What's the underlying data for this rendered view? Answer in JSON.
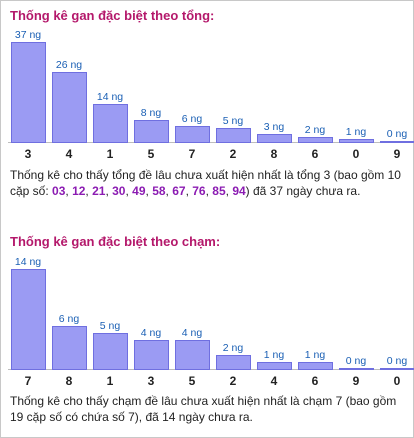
{
  "colors": {
    "title": "#b4186b",
    "bar_fill": "#9b9bf3",
    "bar_stroke": "#6f6fe0",
    "value_label": "#1a5fb4",
    "highlight": "#8b1bb2"
  },
  "section1": {
    "title": "Thống kê gan đặc biệt theo tổng:",
    "desc_pre": "Thống kê cho thấy tổng đề lâu chưa xuất hiện nhất là tổng 3 (bao gồm 10 cặp số: ",
    "numbers": [
      "03",
      "12",
      "21",
      "30",
      "49",
      "58",
      "67",
      "76",
      "85",
      "94"
    ],
    "desc_post": ") đã 37 ngày chưa ra."
  },
  "section2": {
    "title": "Thống kê gan đặc biệt theo chạm:",
    "desc": "Thống kê cho thấy chạm đề lâu chưa xuất hiện nhất là chạm 7 (bao gồm 19 cặp số có chứa số 7), đã 14 ngày chưa ra."
  },
  "chart_data": [
    {
      "type": "bar",
      "title": "Thống kê gan đặc biệt theo tổng:",
      "categories": [
        "3",
        "4",
        "1",
        "5",
        "7",
        "2",
        "8",
        "6",
        "0",
        "9"
      ],
      "values": [
        37,
        26,
        14,
        8,
        6,
        5,
        3,
        2,
        1,
        0
      ],
      "value_labels": [
        "37 ng",
        "26 ng",
        "14 ng",
        "8 ng",
        "6 ng",
        "5 ng",
        "3 ng",
        "2 ng",
        "1 ng",
        "0 ng"
      ],
      "ylim": [
        0,
        37
      ]
    },
    {
      "type": "bar",
      "title": "Thống kê gan đặc biệt theo chạm:",
      "categories": [
        "7",
        "8",
        "1",
        "3",
        "5",
        "2",
        "4",
        "6",
        "9",
        "0"
      ],
      "values": [
        14,
        6,
        5,
        4,
        4,
        2,
        1,
        1,
        0,
        0
      ],
      "value_labels": [
        "14 ng",
        "6 ng",
        "5 ng",
        "4 ng",
        "4 ng",
        "2 ng",
        "1 ng",
        "1 ng",
        "0 ng",
        "0 ng"
      ],
      "ylim": [
        0,
        14
      ]
    }
  ]
}
